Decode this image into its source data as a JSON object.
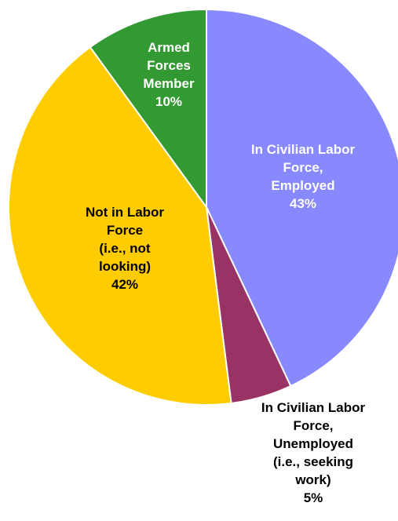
{
  "chart_data": {
    "type": "pie",
    "slices": [
      {
        "lines": [
          "In Civilian Labor",
          "Force,",
          "Employed",
          "43%"
        ],
        "value": 43,
        "color": "#8888ff",
        "label_color": "#ffffff"
      },
      {
        "lines": [
          "In Civilian Labor",
          "Force,",
          "Unemployed",
          "(i.e., seeking",
          "work)",
          "5%"
        ],
        "value": 5,
        "color": "#993366",
        "label_color": "#000000"
      },
      {
        "lines": [
          "Not in Labor",
          "Force",
          "(i.e., not",
          "looking)",
          "42%"
        ],
        "value": 42,
        "color": "#ffcc00",
        "label_color": "#000000"
      },
      {
        "lines": [
          "Armed",
          "Forces",
          "Member",
          "10%"
        ],
        "value": 10,
        "color": "#339933",
        "label_color": "#ffffff"
      }
    ],
    "start_angle_deg": 0,
    "direction": "clockwise",
    "legend": "none"
  }
}
